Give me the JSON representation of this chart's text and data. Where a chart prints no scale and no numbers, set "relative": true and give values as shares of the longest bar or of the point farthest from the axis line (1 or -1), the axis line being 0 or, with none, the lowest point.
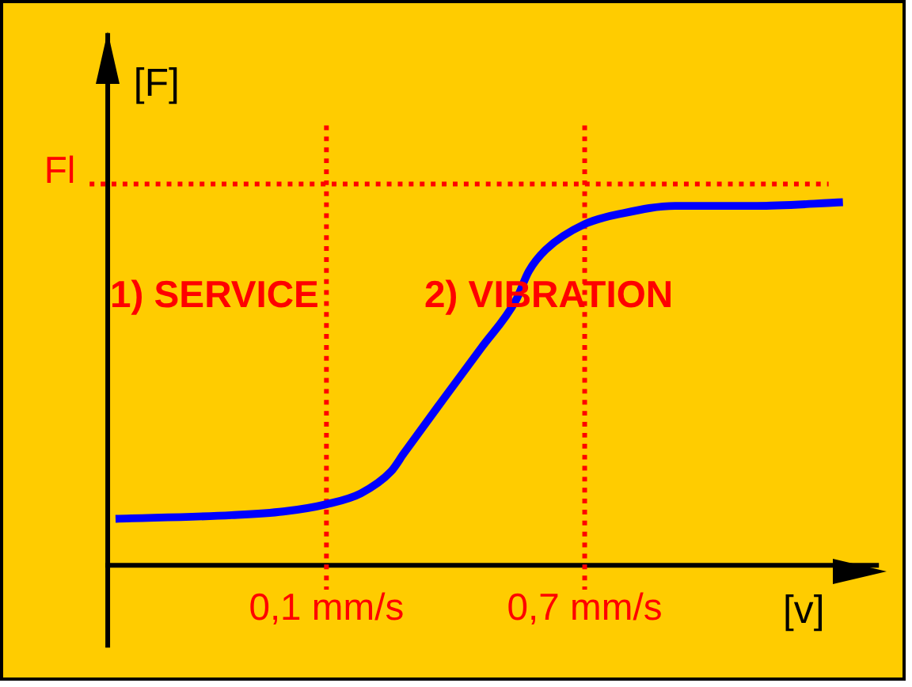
{
  "chart_data": {
    "type": "line",
    "xlabel": "[v]",
    "ylabel": "[F]",
    "annotations": [
      "1) SERVICE",
      "2) VIBRATION"
    ],
    "x": [
      -0.39,
      -0.12,
      0.0,
      0.1,
      0.18,
      0.25,
      0.28,
      0.36,
      0.46,
      0.54,
      0.57,
      0.61,
      0.7,
      0.79,
      0.91,
      1.1,
      1.3
    ],
    "series": [
      {
        "color": "#0000ff",
        "values": [
          0.13,
          0.14,
          0.15,
          0.17,
          0.2,
          0.26,
          0.31,
          0.44,
          0.6,
          0.73,
          0.81,
          0.87,
          0.94,
          0.97,
          0.99,
          0.99,
          1.0
        ]
      }
    ],
    "relative": true,
    "xlim": [
      -0.41,
      1.38
    ],
    "xticks": [
      {
        "value": 0.1,
        "label": "0,1 mm/s"
      },
      {
        "value": 0.7,
        "label": "0,7 mm/s"
      }
    ],
    "ref_lines": [
      {
        "axis": "x",
        "value": 0.1,
        "color": "#ff0000",
        "line_style": "dotted"
      },
      {
        "axis": "x",
        "value": 0.7,
        "color": "#ff0000",
        "line_style": "dotted"
      },
      {
        "axis": "y",
        "value": 1.05,
        "label": "Fl",
        "color": "#ff0000",
        "line_style": "dotted"
      }
    ],
    "tick_labels": "x"
  }
}
